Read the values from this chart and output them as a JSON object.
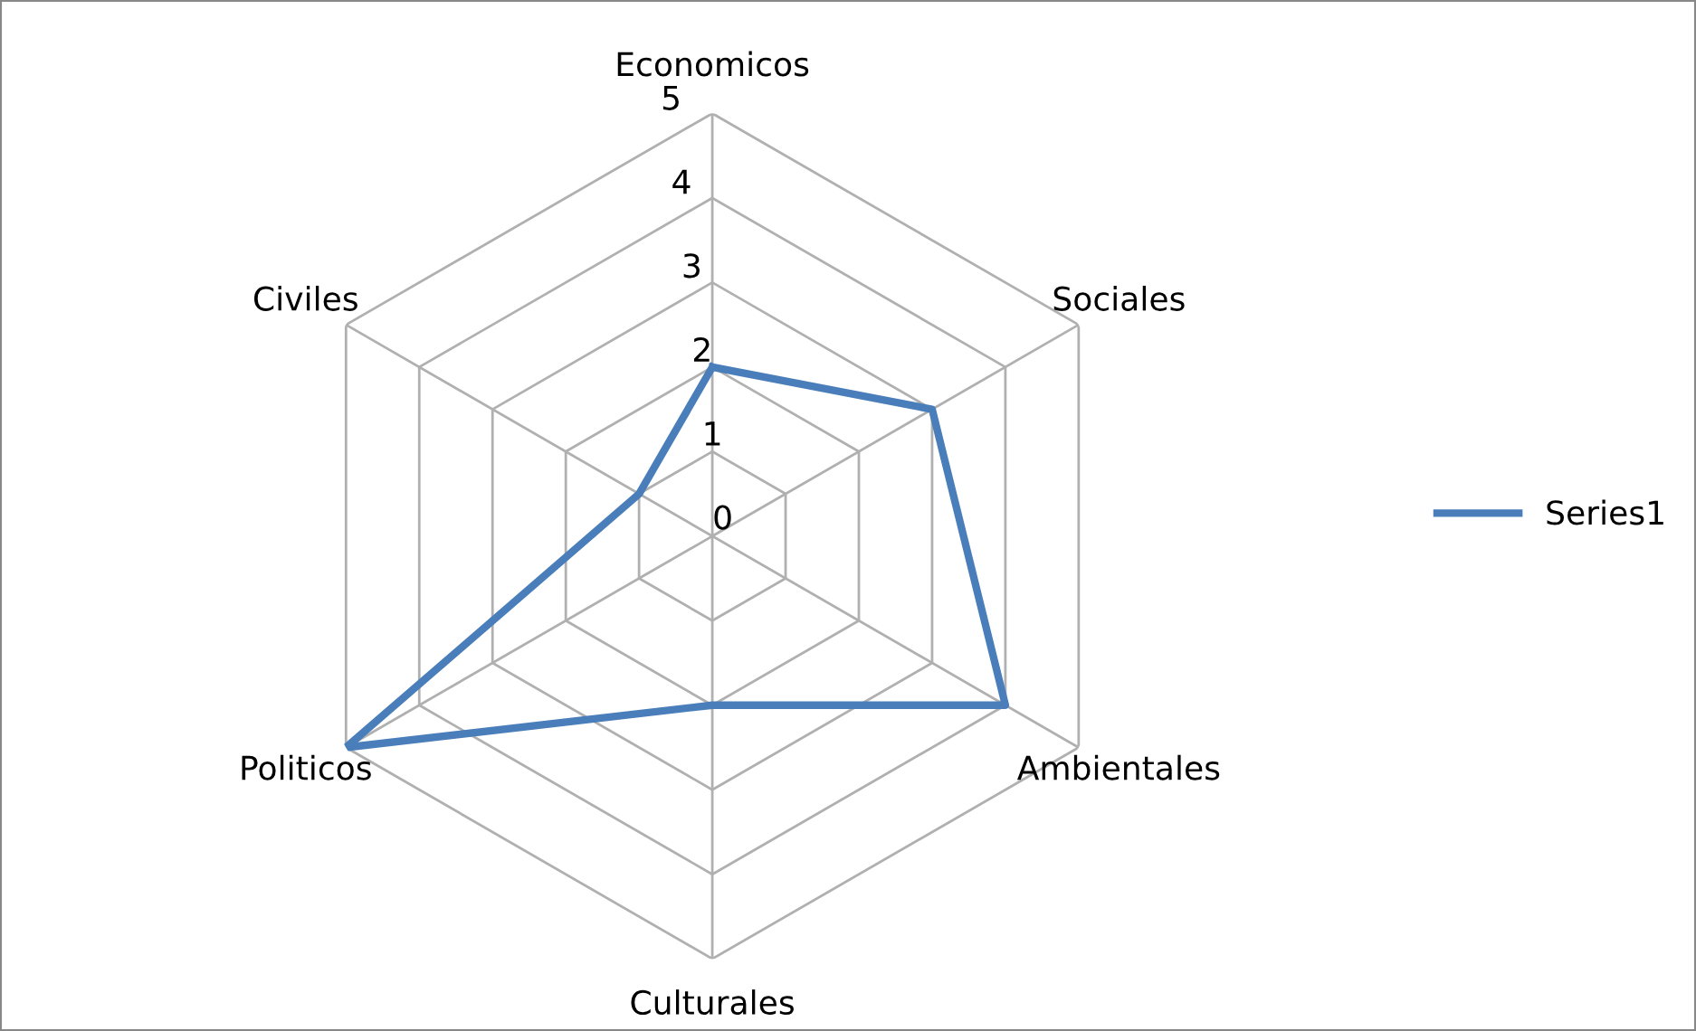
{
  "chart_data": {
    "type": "radar",
    "categories": [
      "Economicos",
      "Sociales",
      "Ambientales",
      "Culturales",
      "Politicos",
      "Civiles"
    ],
    "series": [
      {
        "name": "Series1",
        "color": "#4a7ebb",
        "values": [
          2,
          3,
          4,
          2,
          5,
          1
        ]
      }
    ],
    "ylim": [
      0,
      5
    ],
    "yticks": [
      0,
      1,
      2,
      3,
      4,
      5
    ],
    "grid": true,
    "legend": "right",
    "marker": "none",
    "line_style": "solid"
  }
}
